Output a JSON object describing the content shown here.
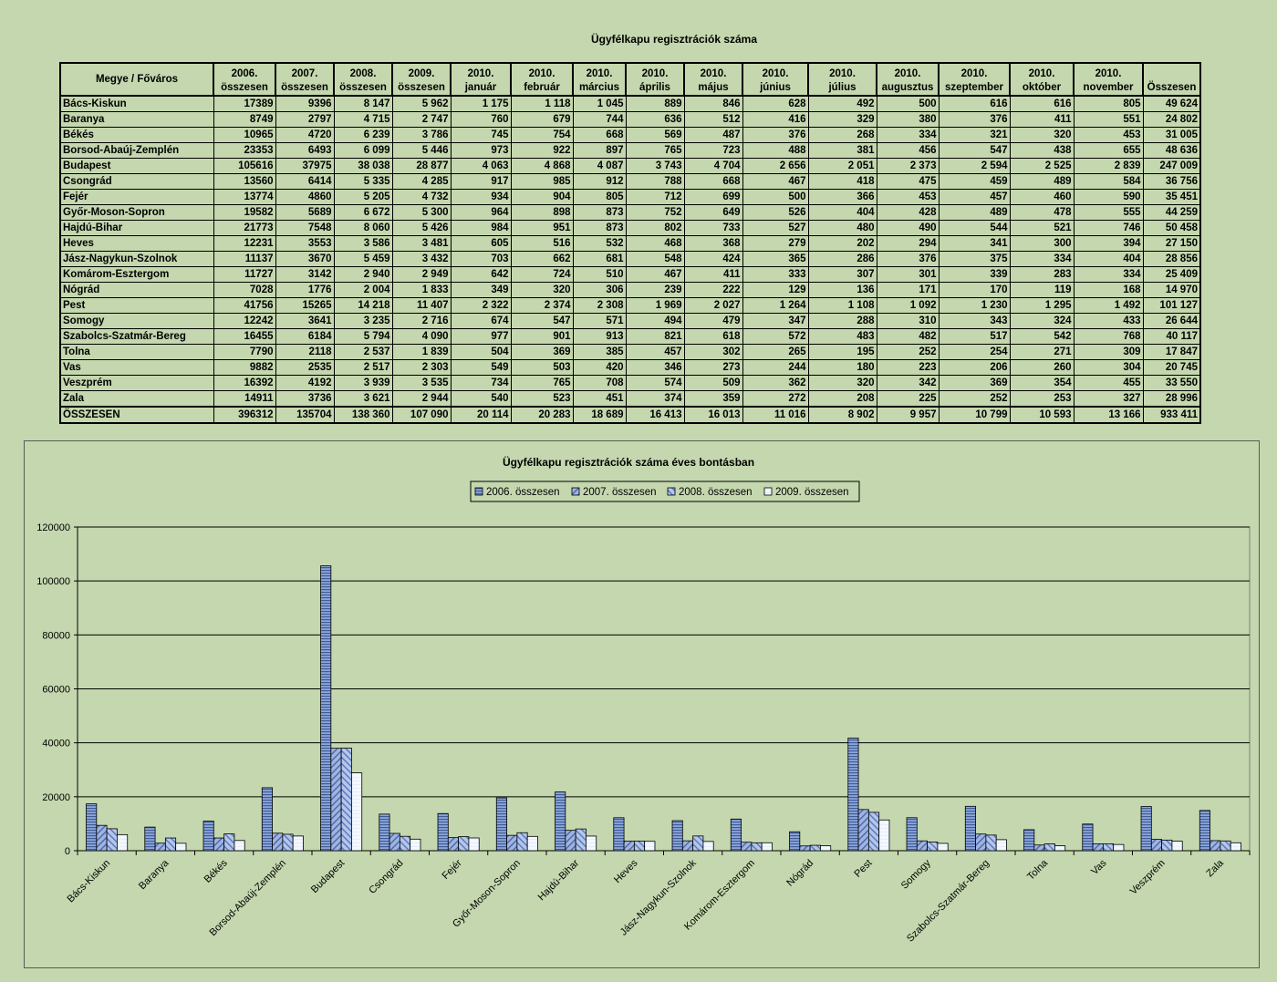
{
  "table": {
    "title": "Ügyfélkapu regisztrációk száma",
    "headers": [
      [
        "Megye / Főváros"
      ],
      [
        "2006.",
        "összesen"
      ],
      [
        "2007.",
        "összesen"
      ],
      [
        "2008.",
        "összesen"
      ],
      [
        "2009.",
        "összesen"
      ],
      [
        "2010.",
        "január"
      ],
      [
        "2010.",
        "február"
      ],
      [
        "2010.",
        "március"
      ],
      [
        "2010.",
        "április"
      ],
      [
        "2010.",
        "május"
      ],
      [
        "2010.",
        "június"
      ],
      [
        "2010.",
        "július"
      ],
      [
        "2010.",
        "augusztus"
      ],
      [
        "2010.",
        "szeptember"
      ],
      [
        "2010.",
        "október"
      ],
      [
        "2010.",
        "november"
      ],
      [
        "Összesen"
      ]
    ],
    "rows": [
      [
        "Bács-Kiskun",
        "17389",
        "9396",
        "8 147",
        "5 962",
        "1 175",
        "1 118",
        "1 045",
        "889",
        "846",
        "628",
        "492",
        "500",
        "616",
        "616",
        "805",
        "49 624"
      ],
      [
        "Baranya",
        "8749",
        "2797",
        "4 715",
        "2 747",
        "760",
        "679",
        "744",
        "636",
        "512",
        "416",
        "329",
        "380",
        "376",
        "411",
        "551",
        "24 802"
      ],
      [
        "Békés",
        "10965",
        "4720",
        "6 239",
        "3 786",
        "745",
        "754",
        "668",
        "569",
        "487",
        "376",
        "268",
        "334",
        "321",
        "320",
        "453",
        "31 005"
      ],
      [
        "Borsod-Abaúj-Zemplén",
        "23353",
        "6493",
        "6 099",
        "5 446",
        "973",
        "922",
        "897",
        "765",
        "723",
        "488",
        "381",
        "456",
        "547",
        "438",
        "655",
        "48 636"
      ],
      [
        "Budapest",
        "105616",
        "37975",
        "38 038",
        "28 877",
        "4 063",
        "4 868",
        "4 087",
        "3 743",
        "4 704",
        "2 656",
        "2 051",
        "2 373",
        "2 594",
        "2 525",
        "2 839",
        "247 009"
      ],
      [
        "Csongrád",
        "13560",
        "6414",
        "5 335",
        "4 285",
        "917",
        "985",
        "912",
        "788",
        "668",
        "467",
        "418",
        "475",
        "459",
        "489",
        "584",
        "36 756"
      ],
      [
        "Fejér",
        "13774",
        "4860",
        "5 205",
        "4 732",
        "934",
        "904",
        "805",
        "712",
        "699",
        "500",
        "366",
        "453",
        "457",
        "460",
        "590",
        "35 451"
      ],
      [
        "Győr-Moson-Sopron",
        "19582",
        "5689",
        "6 672",
        "5 300",
        "964",
        "898",
        "873",
        "752",
        "649",
        "526",
        "404",
        "428",
        "489",
        "478",
        "555",
        "44 259"
      ],
      [
        "Hajdú-Bihar",
        "21773",
        "7548",
        "8 060",
        "5 426",
        "984",
        "951",
        "873",
        "802",
        "733",
        "527",
        "480",
        "490",
        "544",
        "521",
        "746",
        "50 458"
      ],
      [
        "Heves",
        "12231",
        "3553",
        "3 586",
        "3 481",
        "605",
        "516",
        "532",
        "468",
        "368",
        "279",
        "202",
        "294",
        "341",
        "300",
        "394",
        "27 150"
      ],
      [
        "Jász-Nagykun-Szolnok",
        "11137",
        "3670",
        "5 459",
        "3 432",
        "703",
        "662",
        "681",
        "548",
        "424",
        "365",
        "286",
        "376",
        "375",
        "334",
        "404",
        "28 856"
      ],
      [
        "Komárom-Esztergom",
        "11727",
        "3142",
        "2 940",
        "2 949",
        "642",
        "724",
        "510",
        "467",
        "411",
        "333",
        "307",
        "301",
        "339",
        "283",
        "334",
        "25 409"
      ],
      [
        "Nógrád",
        "7028",
        "1776",
        "2 004",
        "1 833",
        "349",
        "320",
        "306",
        "239",
        "222",
        "129",
        "136",
        "171",
        "170",
        "119",
        "168",
        "14 970"
      ],
      [
        "Pest",
        "41756",
        "15265",
        "14 218",
        "11 407",
        "2 322",
        "2 374",
        "2 308",
        "1 969",
        "2 027",
        "1 264",
        "1 108",
        "1 092",
        "1 230",
        "1 295",
        "1 492",
        "101 127"
      ],
      [
        "Somogy",
        "12242",
        "3641",
        "3 235",
        "2 716",
        "674",
        "547",
        "571",
        "494",
        "479",
        "347",
        "288",
        "310",
        "343",
        "324",
        "433",
        "26 644"
      ],
      [
        "Szabolcs-Szatmár-Bereg",
        "16455",
        "6184",
        "5 794",
        "4 090",
        "977",
        "901",
        "913",
        "821",
        "618",
        "572",
        "483",
        "482",
        "517",
        "542",
        "768",
        "40 117"
      ],
      [
        "Tolna",
        "7790",
        "2118",
        "2 537",
        "1 839",
        "504",
        "369",
        "385",
        "457",
        "302",
        "265",
        "195",
        "252",
        "254",
        "271",
        "309",
        "17 847"
      ],
      [
        "Vas",
        "9882",
        "2535",
        "2 517",
        "2 303",
        "549",
        "503",
        "420",
        "346",
        "273",
        "244",
        "180",
        "223",
        "206",
        "260",
        "304",
        "20 745"
      ],
      [
        "Veszprém",
        "16392",
        "4192",
        "3 939",
        "3 535",
        "734",
        "765",
        "708",
        "574",
        "509",
        "362",
        "320",
        "342",
        "369",
        "354",
        "455",
        "33 550"
      ],
      [
        "Zala",
        "14911",
        "3736",
        "3 621",
        "2 944",
        "540",
        "523",
        "451",
        "374",
        "359",
        "272",
        "208",
        "225",
        "252",
        "253",
        "327",
        "28 996"
      ]
    ],
    "total_row": [
      "ÖSSZESEN",
      "396312",
      "135704",
      "138 360",
      "107 090",
      "20 114",
      "20 283",
      "18 689",
      "16 413",
      "16 013",
      "11 016",
      "8 902",
      "9 957",
      "10 799",
      "10 593",
      "13 166",
      "933 411"
    ]
  },
  "chart_data": {
    "type": "bar",
    "title": "Ügyfélkapu regisztrációk száma éves bontásban",
    "legend_position": "top",
    "grid": true,
    "ylim": [
      0,
      120000
    ],
    "yticks": [
      "0",
      "20000",
      "40000",
      "60000",
      "80000",
      "100000",
      "120000"
    ],
    "categories": [
      "Bács-Kiskun",
      "Baranya",
      "Békés",
      "Borsod-Abaúj-Zemplén",
      "Budapest",
      "Csongrád",
      "Fejér",
      "Győr-Moson-Sopron",
      "Hajdú-Bihar",
      "Heves",
      "Jász-Nagykun-Szolnok",
      "Komárom-Esztergom",
      "Nógrád",
      "Pest",
      "Somogy",
      "Szabolcs-Szatmár-Bereg",
      "Tolna",
      "Vas",
      "Veszprém",
      "Zala"
    ],
    "series": [
      {
        "name": "2006. összesen",
        "values": [
          17389,
          8749,
          10965,
          23353,
          105616,
          13560,
          13774,
          19582,
          21773,
          12231,
          11137,
          11727,
          7028,
          41756,
          12242,
          16455,
          7790,
          9882,
          16392,
          14911
        ]
      },
      {
        "name": "2007. összesen",
        "values": [
          9396,
          2797,
          4720,
          6493,
          37975,
          6414,
          4860,
          5689,
          7548,
          3553,
          3670,
          3142,
          1776,
          15265,
          3641,
          6184,
          2118,
          2535,
          4192,
          3736
        ]
      },
      {
        "name": "2008. összesen",
        "values": [
          8147,
          4715,
          6239,
          6099,
          38038,
          5335,
          5205,
          6672,
          8060,
          3586,
          5459,
          2940,
          2004,
          14218,
          3235,
          5794,
          2537,
          2517,
          3939,
          3621
        ]
      },
      {
        "name": "2009. összesen",
        "values": [
          5962,
          2747,
          3786,
          5446,
          28877,
          4285,
          4732,
          5300,
          5426,
          3481,
          3432,
          2949,
          1833,
          11407,
          2716,
          4090,
          1839,
          2303,
          3535,
          2944
        ]
      }
    ]
  }
}
